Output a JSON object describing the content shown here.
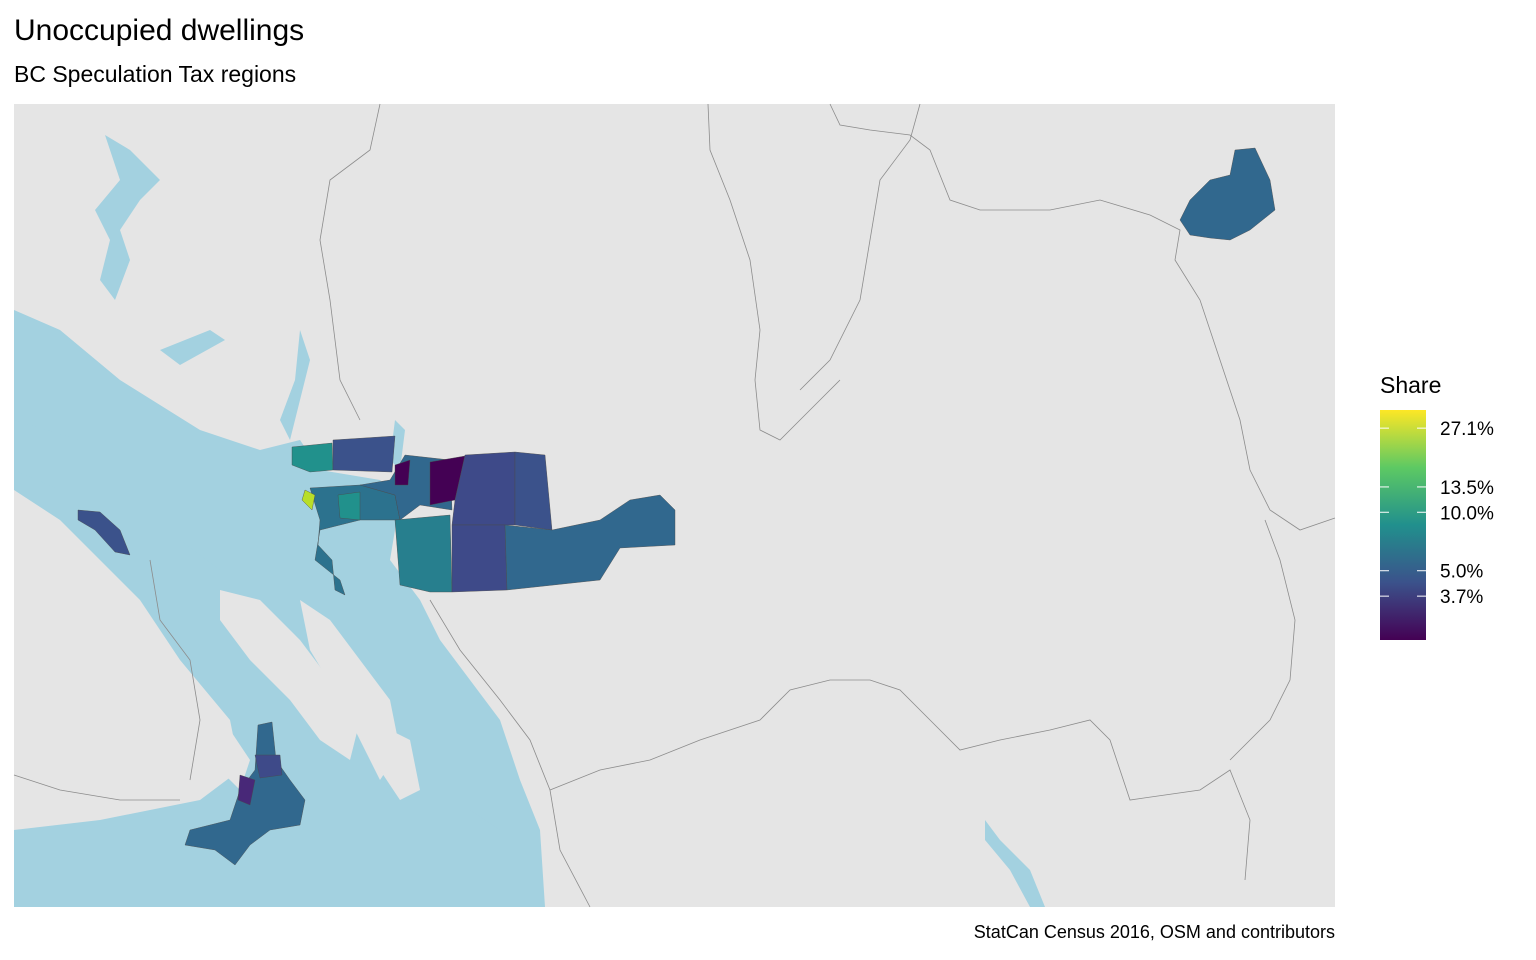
{
  "title": "Unoccupied dwellings",
  "subtitle": "BC Speculation Tax regions",
  "caption": "StatCan Census 2016, OSM and contributors",
  "legend": {
    "title": "Share",
    "scale": "log",
    "lim": [
      2.2,
      33.6
    ],
    "ticks": [
      {
        "value": 27.1,
        "label": "27.1%"
      },
      {
        "value": 13.5,
        "label": "13.5%"
      },
      {
        "value": 10.0,
        "label": "10.0%"
      },
      {
        "value": 5.0,
        "label": "5.0%"
      },
      {
        "value": 3.7,
        "label": "3.7%"
      }
    ],
    "colors": [
      "#440154",
      "#3b528b",
      "#21908d",
      "#5dc963",
      "#fde725"
    ]
  }
}
